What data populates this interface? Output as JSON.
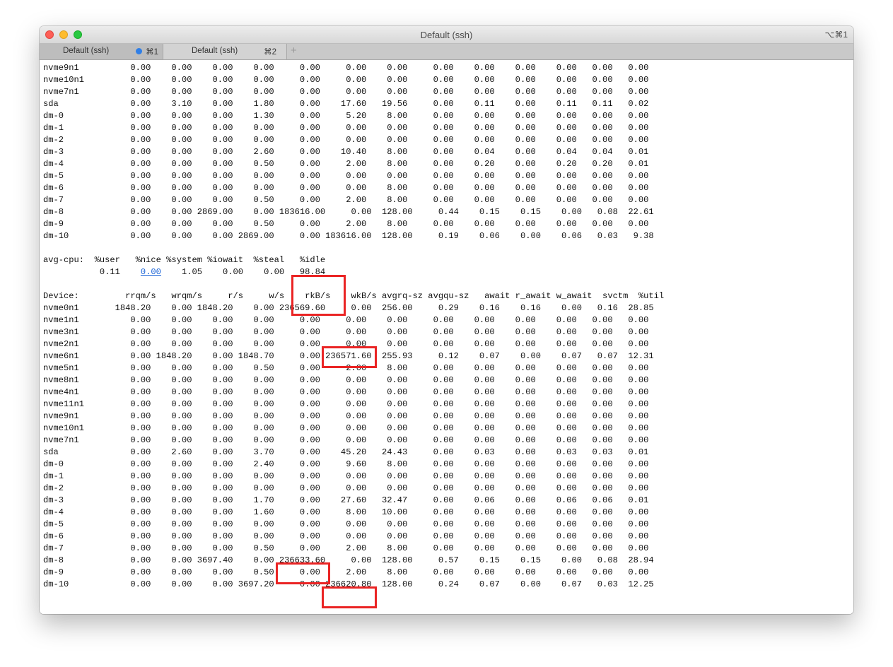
{
  "window": {
    "title": "Default (ssh)",
    "shortcut": "⌥⌘1"
  },
  "tabs": [
    {
      "label": "Default (ssh)",
      "shortcut": "⌘1",
      "active": true,
      "activity_dot_color": "#2f7fe7"
    },
    {
      "label": "Default (ssh)",
      "shortcut": "⌘2",
      "active": false
    }
  ],
  "add_tab_glyph": "+",
  "terminal": {
    "lines": [
      "nvme9n1          0.00    0.00    0.00    0.00     0.00     0.00    0.00     0.00    0.00    0.00    0.00   0.00   0.00",
      "nvme10n1         0.00    0.00    0.00    0.00     0.00     0.00    0.00     0.00    0.00    0.00    0.00   0.00   0.00",
      "nvme7n1          0.00    0.00    0.00    0.00     0.00     0.00    0.00     0.00    0.00    0.00    0.00   0.00   0.00",
      "sda              0.00    3.10    0.00    1.80     0.00    17.60   19.56     0.00    0.11    0.00    0.11   0.11   0.02",
      "dm-0             0.00    0.00    0.00    1.30     0.00     5.20    8.00     0.00    0.00    0.00    0.00   0.00   0.00",
      "dm-1             0.00    0.00    0.00    0.00     0.00     0.00    0.00     0.00    0.00    0.00    0.00   0.00   0.00",
      "dm-2             0.00    0.00    0.00    0.00     0.00     0.00    0.00     0.00    0.00    0.00    0.00   0.00   0.00",
      "dm-3             0.00    0.00    0.00    2.60     0.00    10.40    8.00     0.00    0.04    0.00    0.04   0.04   0.01",
      "dm-4             0.00    0.00    0.00    0.50     0.00     2.00    8.00     0.00    0.20    0.00    0.20   0.20   0.01",
      "dm-5             0.00    0.00    0.00    0.00     0.00     0.00    0.00     0.00    0.00    0.00    0.00   0.00   0.00",
      "dm-6             0.00    0.00    0.00    0.00     0.00     0.00    8.00     0.00    0.00    0.00    0.00   0.00   0.00",
      "dm-7             0.00    0.00    0.00    0.50     0.00     2.00    8.00     0.00    0.00    0.00    0.00   0.00   0.00",
      "dm-8             0.00    0.00 2869.00    0.00 183616.00     0.00  128.00     0.44    0.15    0.15    0.00   0.08  22.61",
      "dm-9             0.00    0.00    0.00    0.50     0.00     2.00    8.00     0.00    0.00    0.00    0.00   0.00   0.00",
      "dm-10            0.00    0.00    0.00 2869.00     0.00 183616.00  128.00     0.19    0.06    0.00    0.06   0.03   9.38",
      "",
      "avg-cpu:  %user   %nice %system %iowait  %steal   %idle",
      "           0.11    0.00    1.05    0.00    0.00   98.84",
      "",
      "Device:         rrqm/s   wrqm/s     r/s     w/s    rkB/s    wkB/s avgrq-sz avgqu-sz   await r_await w_await  svctm  %util",
      "nvme0n1       1848.20    0.00 1848.20    0.00 236569.60     0.00  256.00     0.29    0.16    0.16    0.00   0.16  28.85",
      "nvme1n1          0.00    0.00    0.00    0.00     0.00     0.00    0.00     0.00    0.00    0.00    0.00   0.00   0.00",
      "nvme3n1          0.00    0.00    0.00    0.00     0.00     0.00    0.00     0.00    0.00    0.00    0.00   0.00   0.00",
      "nvme2n1          0.00    0.00    0.00    0.00     0.00     0.00    0.00     0.00    0.00    0.00    0.00   0.00   0.00",
      "nvme6n1          0.00 1848.20    0.00 1848.70     0.00 236571.60  255.93     0.12    0.07    0.00    0.07   0.07  12.31",
      "nvme5n1          0.00    0.00    0.00    0.50     0.00     2.00    8.00     0.00    0.00    0.00    0.00   0.00   0.00",
      "nvme8n1          0.00    0.00    0.00    0.00     0.00     0.00    0.00     0.00    0.00    0.00    0.00   0.00   0.00",
      "nvme4n1          0.00    0.00    0.00    0.00     0.00     0.00    0.00     0.00    0.00    0.00    0.00   0.00   0.00",
      "nvme11n1         0.00    0.00    0.00    0.00     0.00     0.00    0.00     0.00    0.00    0.00    0.00   0.00   0.00",
      "nvme9n1          0.00    0.00    0.00    0.00     0.00     0.00    0.00     0.00    0.00    0.00    0.00   0.00   0.00",
      "nvme10n1         0.00    0.00    0.00    0.00     0.00     0.00    0.00     0.00    0.00    0.00    0.00   0.00   0.00",
      "nvme7n1          0.00    0.00    0.00    0.00     0.00     0.00    0.00     0.00    0.00    0.00    0.00   0.00   0.00",
      "sda              0.00    2.60    0.00    3.70     0.00    45.20   24.43     0.00    0.03    0.00    0.03   0.03   0.01",
      "dm-0             0.00    0.00    0.00    2.40     0.00     9.60    8.00     0.00    0.00    0.00    0.00   0.00   0.00",
      "dm-1             0.00    0.00    0.00    0.00     0.00     0.00    0.00     0.00    0.00    0.00    0.00   0.00   0.00",
      "dm-2             0.00    0.00    0.00    0.00     0.00     0.00    0.00     0.00    0.00    0.00    0.00   0.00   0.00",
      "dm-3             0.00    0.00    0.00    1.70     0.00    27.60   32.47     0.00    0.06    0.00    0.06   0.06   0.01",
      "dm-4             0.00    0.00    0.00    1.60     0.00     8.00   10.00     0.00    0.00    0.00    0.00   0.00   0.00",
      "dm-5             0.00    0.00    0.00    0.00     0.00     0.00    0.00     0.00    0.00    0.00    0.00   0.00   0.00",
      "dm-6             0.00    0.00    0.00    0.00     0.00     0.00    0.00     0.00    0.00    0.00    0.00   0.00   0.00",
      "dm-7             0.00    0.00    0.00    0.50     0.00     2.00    8.00     0.00    0.00    0.00    0.00   0.00   0.00",
      "dm-8             0.00    0.00 3697.40    0.00 236633.60     0.00  128.00     0.57    0.15    0.15    0.00   0.08  28.94",
      "dm-9             0.00    0.00    0.00    0.50     0.00     2.00    8.00     0.00    0.00    0.00    0.00   0.00   0.00",
      "dm-10            0.00    0.00    0.00 3697.20     0.00 236620.80  128.00     0.24    0.07    0.00    0.07   0.03  12.25"
    ],
    "link_text": "0.00",
    "highlight_color": "#ea2424"
  }
}
